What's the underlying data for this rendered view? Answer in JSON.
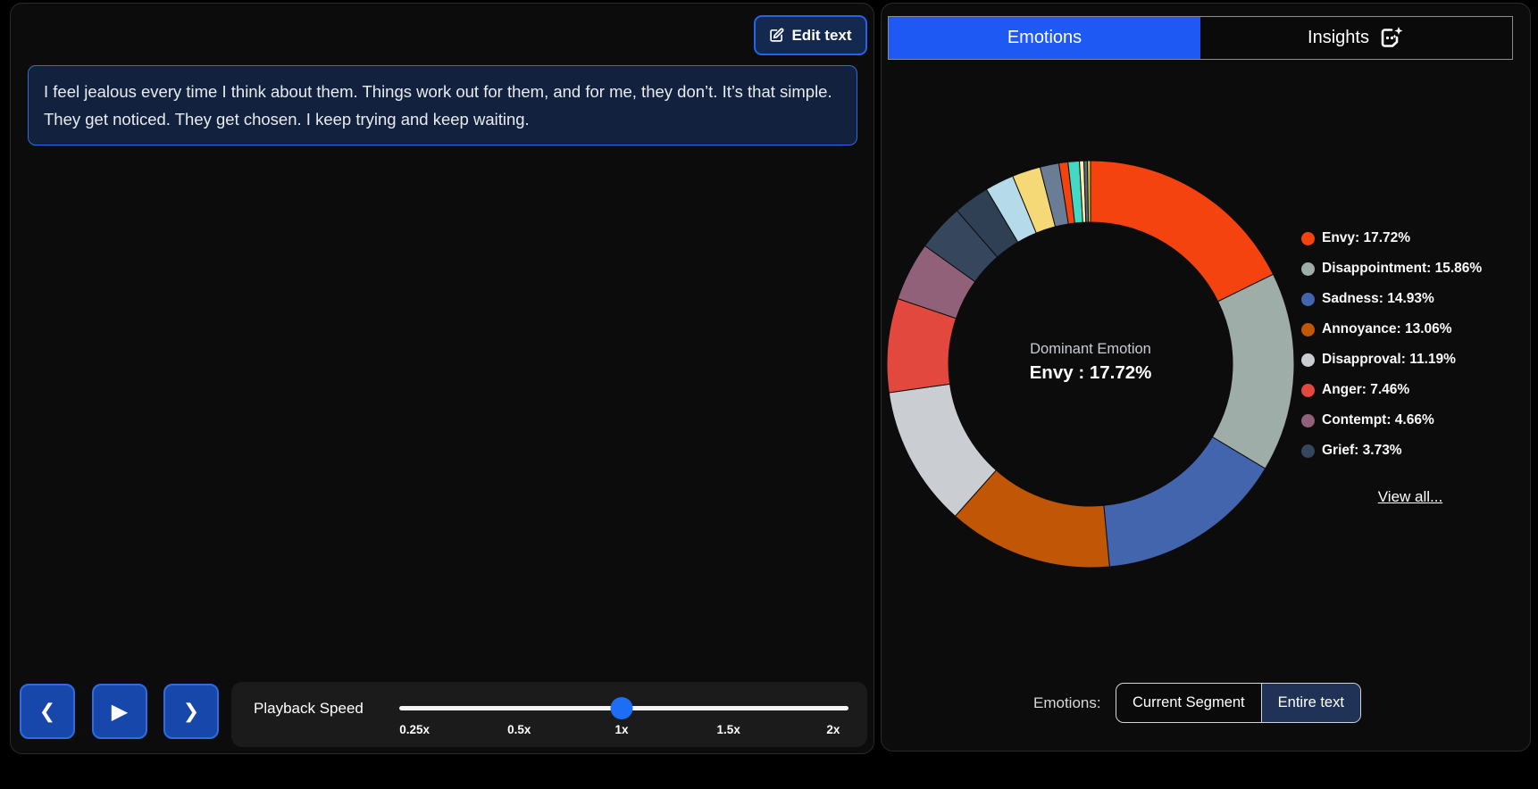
{
  "left_panel": {
    "edit_button": {
      "label": "Edit text"
    },
    "transcript": "I feel jealous every time I think about them. Things work out for them, and for me, they don’t. It’s that simple. They get noticed. They get chosen. I keep trying and keep waiting.",
    "nav": {
      "prev_icon": "chevron-left",
      "play_icon": "play",
      "next_icon": "chevron-right"
    },
    "playback": {
      "label": "Playback Speed",
      "speeds": [
        "0.25x",
        "0.5x",
        "1x",
        "1.5x",
        "2x"
      ],
      "current_speed": "1x"
    }
  },
  "right_panel": {
    "tabs": [
      {
        "label": "Emotions",
        "active": true
      },
      {
        "label": "Insights",
        "active": false
      }
    ],
    "center": {
      "title": "Dominant Emotion",
      "value": "Envy : 17.72%"
    },
    "view_all_label": "View all...",
    "footer": {
      "label": "Emotions:",
      "options": [
        "Current Segment",
        "Entire text"
      ],
      "selected": "Entire text"
    }
  },
  "colors": {
    "accent_blue": "#1d59f2",
    "button_blue": "#1747ab",
    "slider_thumb": "#1d6ef5",
    "segment_highlight_bg": "#12223e",
    "segment_highlight_border": "#2e6ae0",
    "selected_toggle_bg": "#203357"
  },
  "chart_data": {
    "type": "donut",
    "title": "Dominant Emotion",
    "center_label": "Envy : 17.72%",
    "start_angle_deg": 0,
    "direction": "clockwise",
    "legend_visible_count": 8,
    "legend_position": "right",
    "series": [
      {
        "name": "Envy",
        "value": 17.72,
        "color": "#F4430E"
      },
      {
        "name": "Disappointment",
        "value": 15.86,
        "color": "#9EADA8"
      },
      {
        "name": "Sadness",
        "value": 14.93,
        "color": "#4365AE"
      },
      {
        "name": "Annoyance",
        "value": 13.06,
        "color": "#C25607"
      },
      {
        "name": "Disapproval",
        "value": 11.19,
        "color": "#CACDD1"
      },
      {
        "name": "Anger",
        "value": 7.46,
        "color": "#E2483D"
      },
      {
        "name": "Contempt",
        "value": 4.66,
        "color": "#906179"
      },
      {
        "name": "Grief",
        "value": 3.73,
        "color": "#36475D"
      },
      {
        "name": "other-1",
        "unlabeled": true,
        "value": 2.85,
        "color": "#2F3F54"
      },
      {
        "name": "other-2",
        "unlabeled": true,
        "value": 2.3,
        "color": "#B5DBEA"
      },
      {
        "name": "other-3",
        "unlabeled": true,
        "value": 2.25,
        "color": "#F4D976"
      },
      {
        "name": "other-4",
        "unlabeled": true,
        "value": 1.5,
        "color": "#6B7C95"
      },
      {
        "name": "other-5",
        "unlabeled": true,
        "value": 0.72,
        "color": "#F4430E"
      },
      {
        "name": "other-6",
        "unlabeled": true,
        "value": 0.9,
        "color": "#42D9C5"
      },
      {
        "name": "other-7",
        "unlabeled": true,
        "value": 0.35,
        "color": "#F6ECAE"
      },
      {
        "name": "other-8",
        "unlabeled": true,
        "value": 0.28,
        "color": "#5A6880"
      },
      {
        "name": "other-9",
        "unlabeled": true,
        "value": 0.24,
        "color": "#E2C53E"
      }
    ]
  }
}
